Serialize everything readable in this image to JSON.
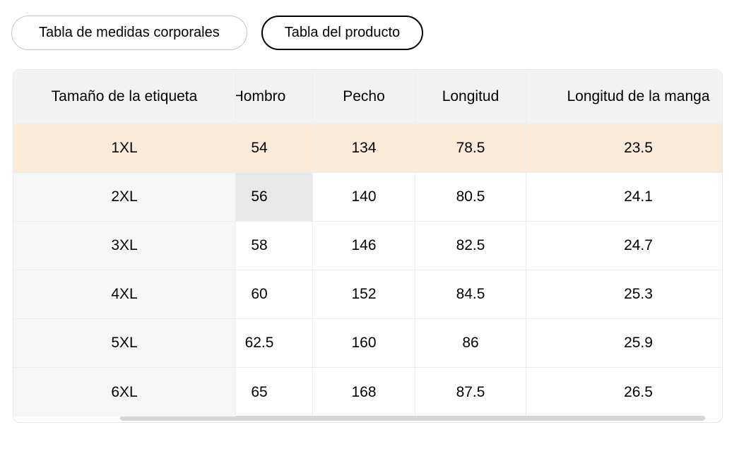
{
  "tabs": [
    {
      "label": "Tabla de medidas corporales",
      "selected": false
    },
    {
      "label": "Tabla del producto",
      "selected": true
    }
  ],
  "table": {
    "columns": [
      "Tamaño de la etiqueta",
      "Hombro",
      "Pecho",
      "Longitud",
      "Longitud de la manga"
    ],
    "rows": [
      {
        "size": "1XL",
        "values": [
          "54",
          "134",
          "78.5",
          "23.5"
        ]
      },
      {
        "size": "2XL",
        "values": [
          "56",
          "140",
          "80.5",
          "24.1"
        ]
      },
      {
        "size": "3XL",
        "values": [
          "58",
          "146",
          "82.5",
          "24.7"
        ]
      },
      {
        "size": "4XL",
        "values": [
          "60",
          "152",
          "84.5",
          "25.3"
        ]
      },
      {
        "size": "5XL",
        "values": [
          "62.5",
          "160",
          "86",
          "25.9"
        ]
      },
      {
        "size": "6XL",
        "values": [
          "65",
          "168",
          "87.5",
          "26.5"
        ]
      }
    ]
  },
  "state": {
    "active_tab": "Tabla del producto",
    "highlighted_row": "1XL",
    "pressed_cell": {
      "row": "2XL",
      "column": "Hombro"
    },
    "horizontal_scroll": "table scrolled right, first column pinned"
  },
  "colors": {
    "highlighted_row_bg": "#fcead9",
    "pressed_cell_bg": "#e8e8e8",
    "header_bg": "#f2f2f2",
    "sticky_column_bg": "#f6f6f6",
    "active_tab_border": "#000000",
    "inactive_tab_border": "#c6c6c6",
    "grid_line": "#ededed",
    "scrollbar_thumb": "#d6d6d6"
  }
}
